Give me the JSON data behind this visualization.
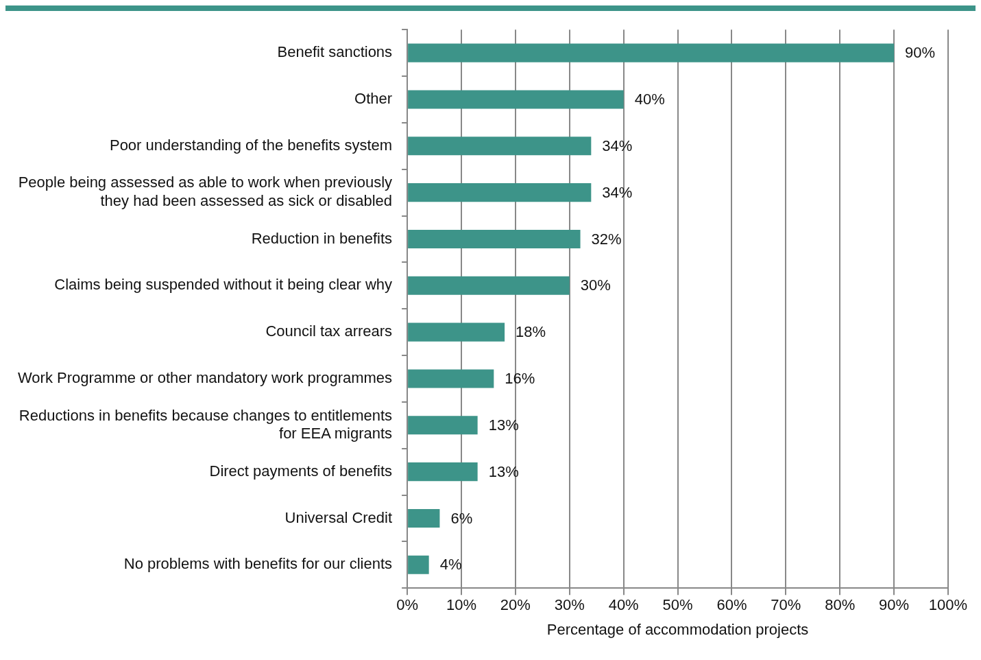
{
  "chart_data": {
    "type": "bar",
    "orientation": "horizontal",
    "xlabel": "Percentage of accommodation projects",
    "categories": [
      "Benefit sanctions",
      "Other",
      "Poor understanding of the benefits system",
      "People being assessed as able to work when previously they had been assessed as sick or disabled",
      "Reduction in benefits",
      "Claims being suspended without it being clear why",
      "Council tax arrears",
      "Work Programme or other mandatory work programmes",
      "Reductions in benefits because changes to entitlements for EEA migrants",
      "Direct payments of benefits",
      "Universal Credit",
      "No problems with benefits for our clients"
    ],
    "values": [
      90,
      40,
      34,
      34,
      32,
      30,
      18,
      16,
      13,
      13,
      6,
      4
    ],
    "color": "#3d9489",
    "xlim": [
      0,
      100
    ],
    "xticks": [
      {
        "value": 0,
        "label": "0%"
      },
      {
        "value": 10,
        "label": "10%"
      },
      {
        "value": 20,
        "label": "20%"
      },
      {
        "value": 30,
        "label": "30%"
      },
      {
        "value": 40,
        "label": "40%"
      },
      {
        "value": 50,
        "label": "50%"
      },
      {
        "value": 60,
        "label": "60%"
      },
      {
        "value": 70,
        "label": "70%"
      },
      {
        "value": 80,
        "label": "80%"
      },
      {
        "value": 90,
        "label": "90%"
      },
      {
        "value": 100,
        "label": "100%"
      }
    ],
    "value_labels": [
      "90%",
      "40%",
      "34%",
      "34%",
      "32%",
      "30%",
      "18%",
      "16%",
      "13%",
      "13%",
      "6%",
      "4%"
    ],
    "grid": "x"
  }
}
